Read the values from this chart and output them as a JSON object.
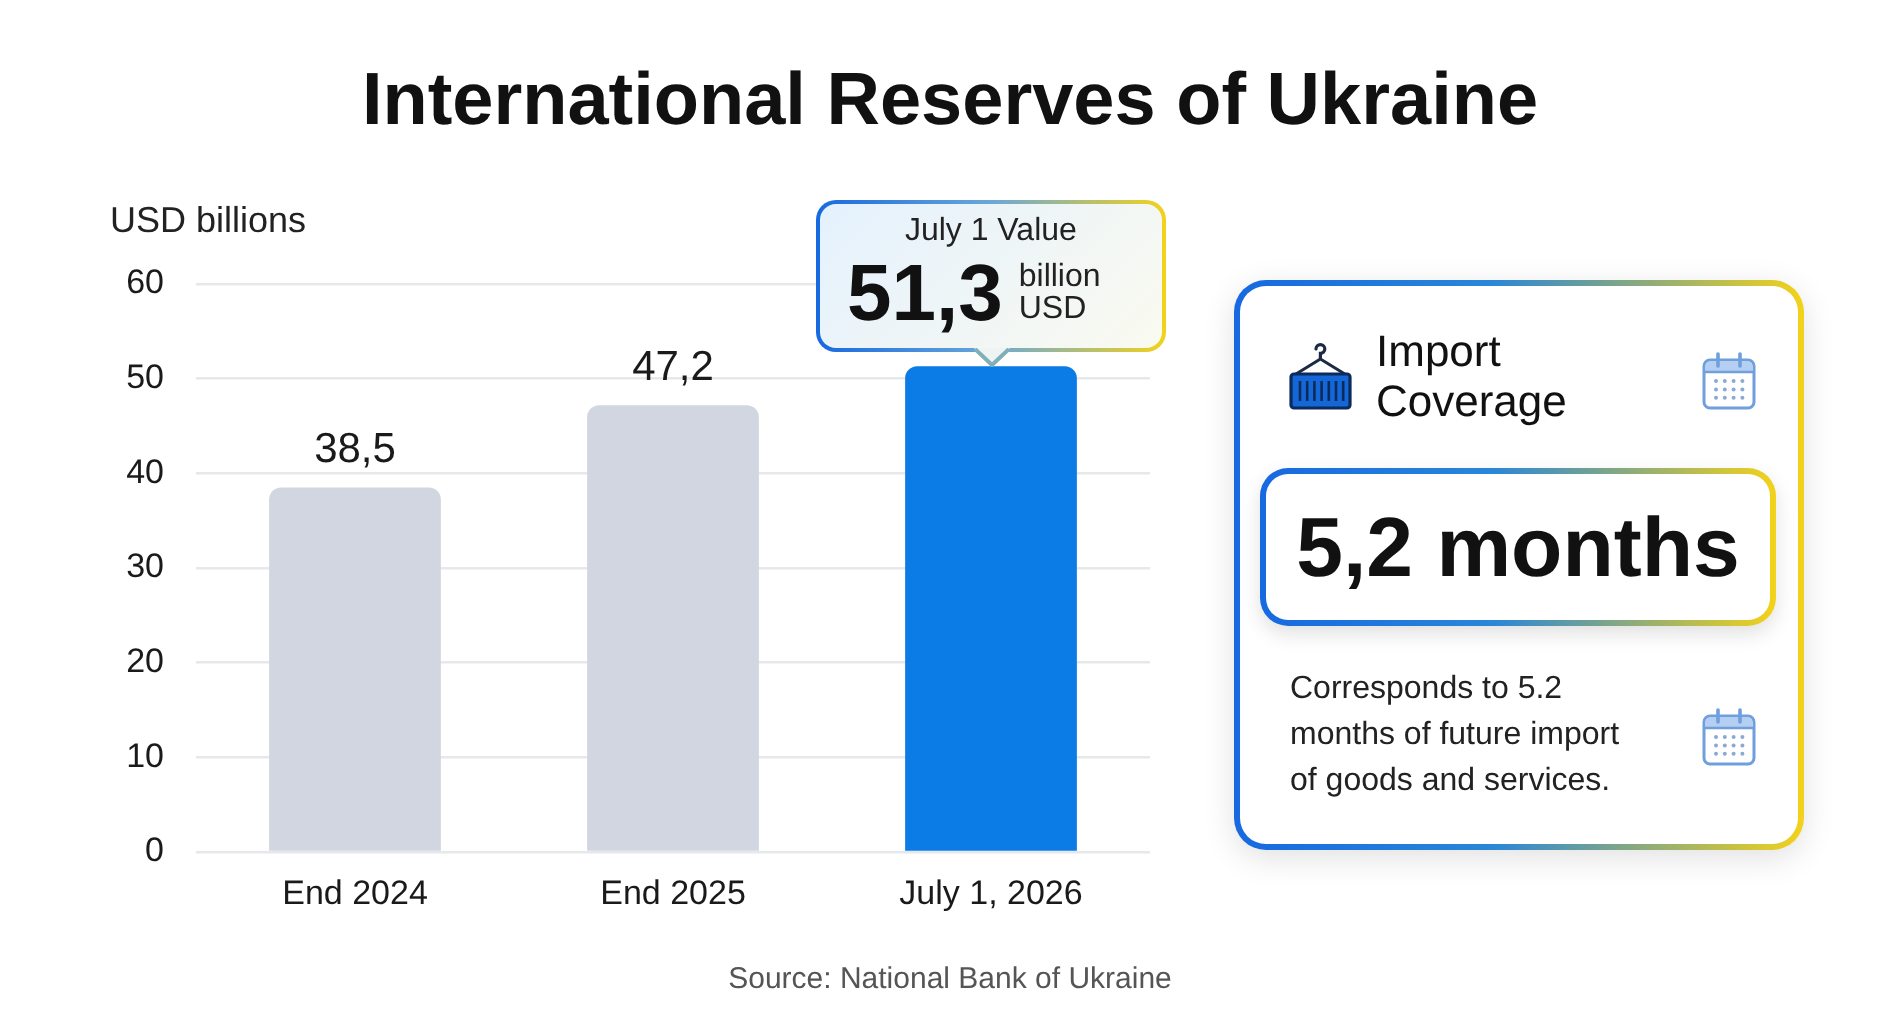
{
  "chart_data": [
    {
      "type": "bar",
      "title": "International Reserves of Ukraine",
      "ylabel": "USD billions",
      "categories": [
        "End 2024",
        "End 2025",
        "July 1, 2026"
      ],
      "values": [
        38.5,
        47.2,
        51.3
      ],
      "colors": [
        "#d1d6e0",
        "#d1d6e0",
        "#0b7be6"
      ],
      "ylim": [
        0,
        60
      ],
      "yticks": [
        0,
        10,
        20,
        30,
        40,
        50,
        60
      ],
      "grid": "y",
      "value_labels": [
        "38,5",
        "47,2",
        "51,3"
      ],
      "annotations": [
        "July 1 Value",
        {
          "text": "billion USD",
          "x": "July 1, 2026",
          "y": 51.3
        },
        "Source: National Bank of Ukraine"
      ]
    },
    {
      "type": "other",
      "title": "Import Coverage",
      "annotations": [
        "5,2 months",
        "Corresponds to 5.2 months of future import of goods and services."
      ]
    }
  ]
}
